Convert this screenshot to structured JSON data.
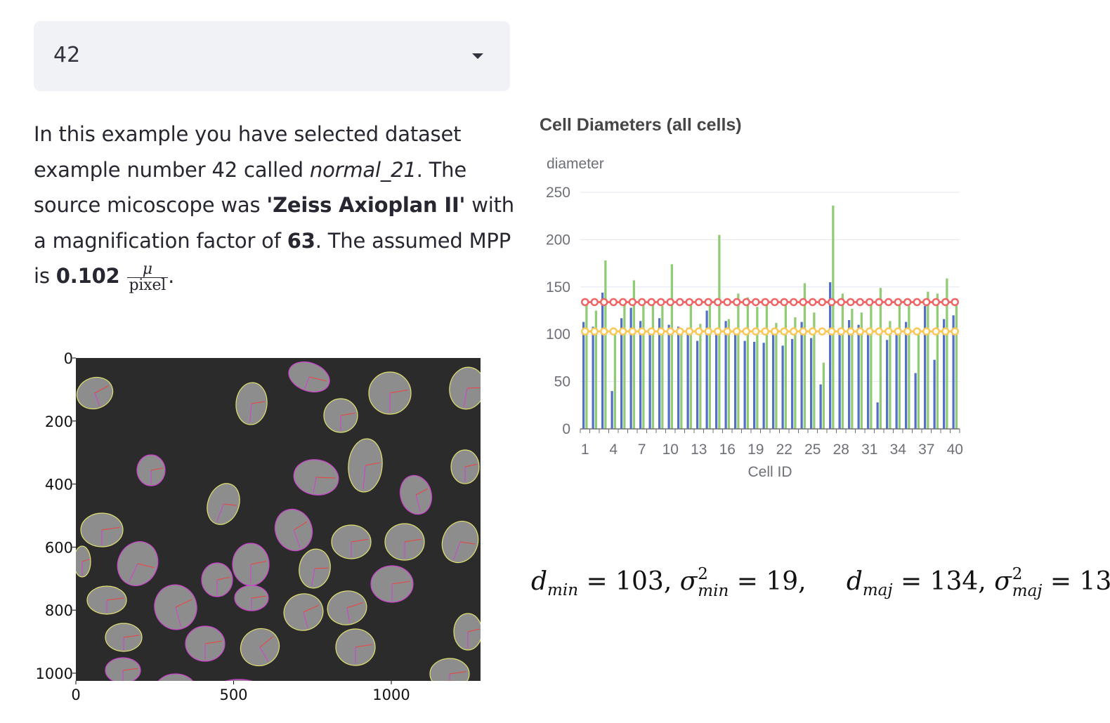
{
  "selector": {
    "value": "42"
  },
  "description": {
    "p1": "In this example you have selected dataset example number ",
    "dataset_number": "42",
    "p2": " called ",
    "dataset_name": "normal_21",
    "p3": ". The source micoscope was ",
    "microscope": "'Zeiss Axioplan II'",
    "p4": " with a magnification factor of ",
    "magnification": "63",
    "p5": ". The assumed MPP is ",
    "mpp": "0.102",
    "unit_num": "μ",
    "unit_den": "pixel",
    "p6": "."
  },
  "image_plot": {
    "y_ticks": [
      "0",
      "200",
      "400",
      "600",
      "800",
      "1000"
    ],
    "x_ticks": [
      "0",
      "500",
      "1000"
    ],
    "colors": {
      "background": "#2b2b2b",
      "outline_yellow": "#e0e070",
      "outline_magenta": "#d040d0",
      "axis_minor": "#f04040"
    }
  },
  "formula": {
    "d": "d",
    "min": "min",
    "maj": "maj",
    "dmin_value": "103",
    "var_min_value": "19",
    "dmaj_value": "134",
    "var_maj_value": "13",
    "sigma": "σ",
    "sq": "2"
  },
  "chart_data": {
    "type": "bar",
    "title": "Cell Diameters (all cells)",
    "ylabel": "diameter",
    "xlabel": "Cell ID",
    "ylim": [
      0,
      250
    ],
    "y_ticks": [
      0,
      50,
      100,
      150,
      200,
      250
    ],
    "x_tick_labels": [
      "1",
      "4",
      "7",
      "10",
      "13",
      "16",
      "19",
      "22",
      "25",
      "28",
      "31",
      "34",
      "37",
      "40"
    ],
    "categories": [
      1,
      2,
      3,
      4,
      5,
      6,
      7,
      8,
      9,
      10,
      11,
      12,
      13,
      14,
      15,
      16,
      17,
      18,
      19,
      20,
      21,
      22,
      23,
      24,
      25,
      26,
      27,
      28,
      29,
      30,
      31,
      32,
      33,
      34,
      35,
      36,
      37,
      38,
      39,
      40
    ],
    "series": [
      {
        "color": "#5470c6",
        "values": [
          113,
          108,
          144,
          40,
          117,
          128,
          114,
          103,
          117,
          110,
          108,
          107,
          93,
          125,
          101,
          114,
          102,
          93,
          92,
          91,
          101,
          88,
          95,
          113,
          96,
          47,
          155,
          102,
          115,
          110,
          100,
          28,
          94,
          101,
          113,
          59,
          130,
          73,
          116,
          120
        ]
      },
      {
        "color": "#91cc75",
        "values": [
          135,
          125,
          178,
          106,
          132,
          157,
          135,
          135,
          130,
          174,
          105,
          131,
          111,
          133,
          205,
          116,
          143,
          139,
          129,
          132,
          112,
          136,
          118,
          154,
          123,
          70,
          236,
          143,
          127,
          123,
          134,
          149,
          114,
          131,
          130,
          103,
          145,
          143,
          159,
          138
        ]
      }
    ],
    "reference_lines": [
      {
        "color": "#ee6666",
        "value": 134
      },
      {
        "color": "#fac858",
        "value": 103
      }
    ],
    "grid": true
  }
}
